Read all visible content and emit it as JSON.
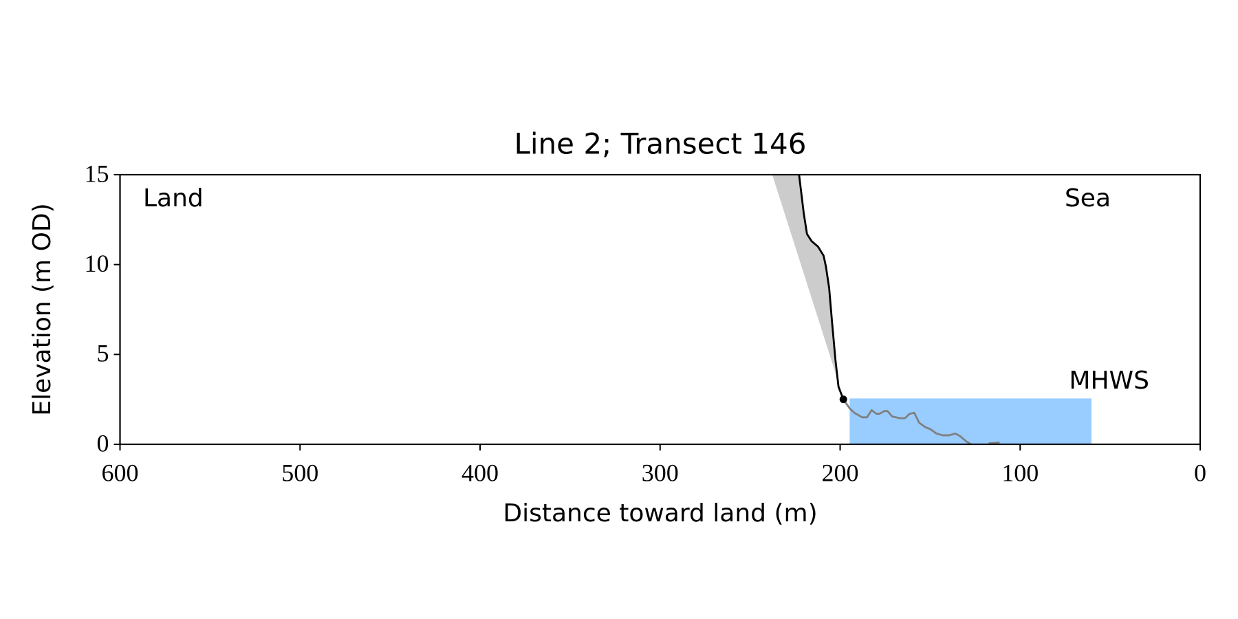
{
  "chart_data": {
    "type": "line",
    "title": "Line 2; Transect 146",
    "x_label": "Distance toward land (m)",
    "y_label": "Elevation (m OD)",
    "land_label": "Land",
    "sea_label": "Sea",
    "xlim": [
      600,
      0
    ],
    "ylim": [
      0,
      15
    ],
    "xticks": [
      600,
      500,
      400,
      300,
      200,
      100,
      0
    ],
    "yticks": [
      0,
      5,
      10,
      15
    ],
    "shade": {
      "color": "#cccccc",
      "x": [
        237.7,
        199.5
      ],
      "values": [
        15,
        3.0
      ]
    },
    "mhws": {
      "label": "MHWS",
      "value": 2.55,
      "x": [
        194.7,
        60.4
      ],
      "color": "#99ccff",
      "label_color": "#6699cc"
    },
    "series": [
      {
        "color": "#000000",
        "x": [
          222.8,
          220.2,
          218.4,
          215.8,
          212.3,
          209.2,
          207.9,
          206.1,
          204.4,
          202.6,
          200.9,
          198.2
        ],
        "values": [
          15,
          12.85,
          11.7,
          11.3,
          11.0,
          10.5,
          9.9,
          8.7,
          6.7,
          4.7,
          3.2,
          2.5
        ]
      },
      {
        "color": "#808080",
        "x": [
          198.2,
          194.7,
          192.1,
          187.7,
          185.1,
          182.5,
          179.8,
          178.1,
          175.4,
          173.7,
          171.1,
          166.7,
          164.0,
          161.4,
          158.8,
          156.1,
          152.6,
          150.0,
          146.5,
          143.0,
          139.5,
          136.0,
          133.3,
          129.8,
          127.2,
          122.0,
          117.5,
          111.4
        ],
        "values": [
          2.5,
          2.0,
          1.75,
          1.5,
          1.5,
          1.9,
          1.7,
          1.7,
          1.85,
          1.85,
          1.55,
          1.45,
          1.45,
          1.7,
          1.75,
          1.2,
          0.95,
          0.85,
          0.6,
          0.5,
          0.5,
          0.6,
          0.45,
          0.15,
          0,
          null,
          0.05,
          0.1
        ]
      }
    ],
    "point": {
      "x": 198.2,
      "y": 2.5,
      "color": "#000000"
    }
  }
}
